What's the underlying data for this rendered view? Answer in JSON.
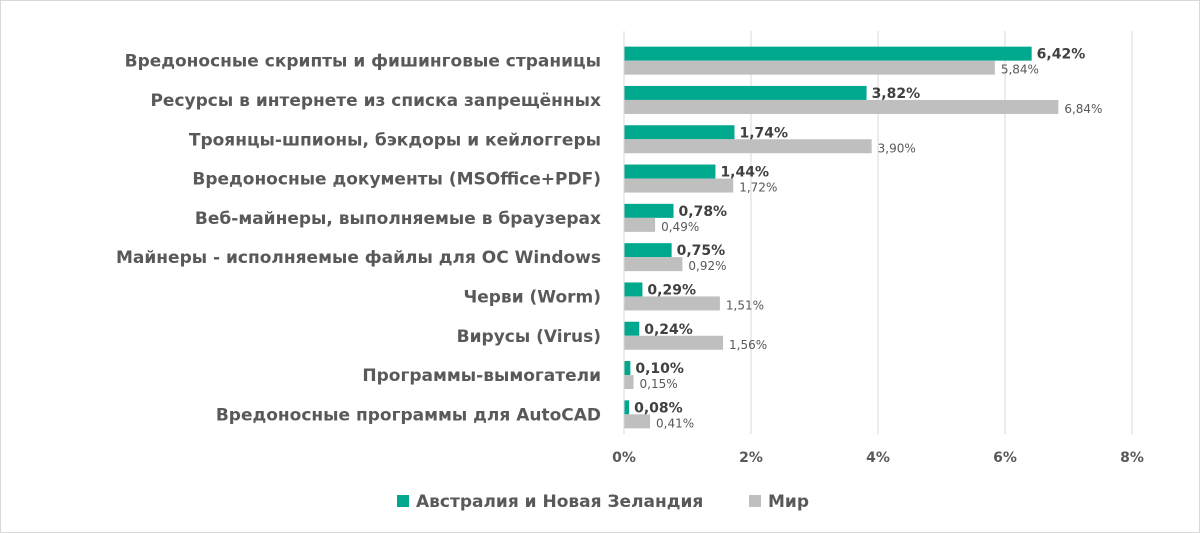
{
  "chart_data": {
    "type": "bar",
    "orientation": "horizontal",
    "categories": [
      "Вредоносные скрипты и фишинговые страницы",
      "Ресурсы в интернете из списка запрещённых",
      "Троянцы-шпионы, бэкдоры и кейлоггеры",
      "Вредоносные документы (MSOffice+PDF)",
      "Веб-майнеры, выполняемые в браузерах",
      "Майнеры - исполняемые файлы для ОС Windows",
      "Черви (Worm)",
      "Вирусы (Virus)",
      "Программы-вымогатели",
      "Вредоносные программы для AutoCAD"
    ],
    "series": [
      {
        "name": "Австралия и Новая Зеландия",
        "color": "#00a88e",
        "values": [
          6.42,
          3.82,
          1.74,
          1.44,
          0.78,
          0.75,
          0.29,
          0.24,
          0.1,
          0.08
        ],
        "labels": [
          "6,42%",
          "3,82%",
          "1,74%",
          "1,44%",
          "0,78%",
          "0,75%",
          "0,29%",
          "0,24%",
          "0,10%",
          "0,08%"
        ]
      },
      {
        "name": "Мир",
        "color": "#bfbfbf",
        "values": [
          5.84,
          6.84,
          3.9,
          1.72,
          0.49,
          0.92,
          1.51,
          1.56,
          0.15,
          0.41
        ],
        "labels": [
          "5,84%",
          "6,84%",
          "3,90%",
          "1,72%",
          "0,49%",
          "0,92%",
          "1,51%",
          "1,56%",
          "0,15%",
          "0,41%"
        ]
      }
    ],
    "xticks": [
      0,
      2,
      4,
      6,
      8
    ],
    "xtick_labels": [
      "0%",
      "2%",
      "4%",
      "6%",
      "8%"
    ],
    "xlim": [
      0,
      8
    ],
    "grid": true,
    "legend": "bottom",
    "title": "",
    "xlabel": "",
    "ylabel": ""
  }
}
